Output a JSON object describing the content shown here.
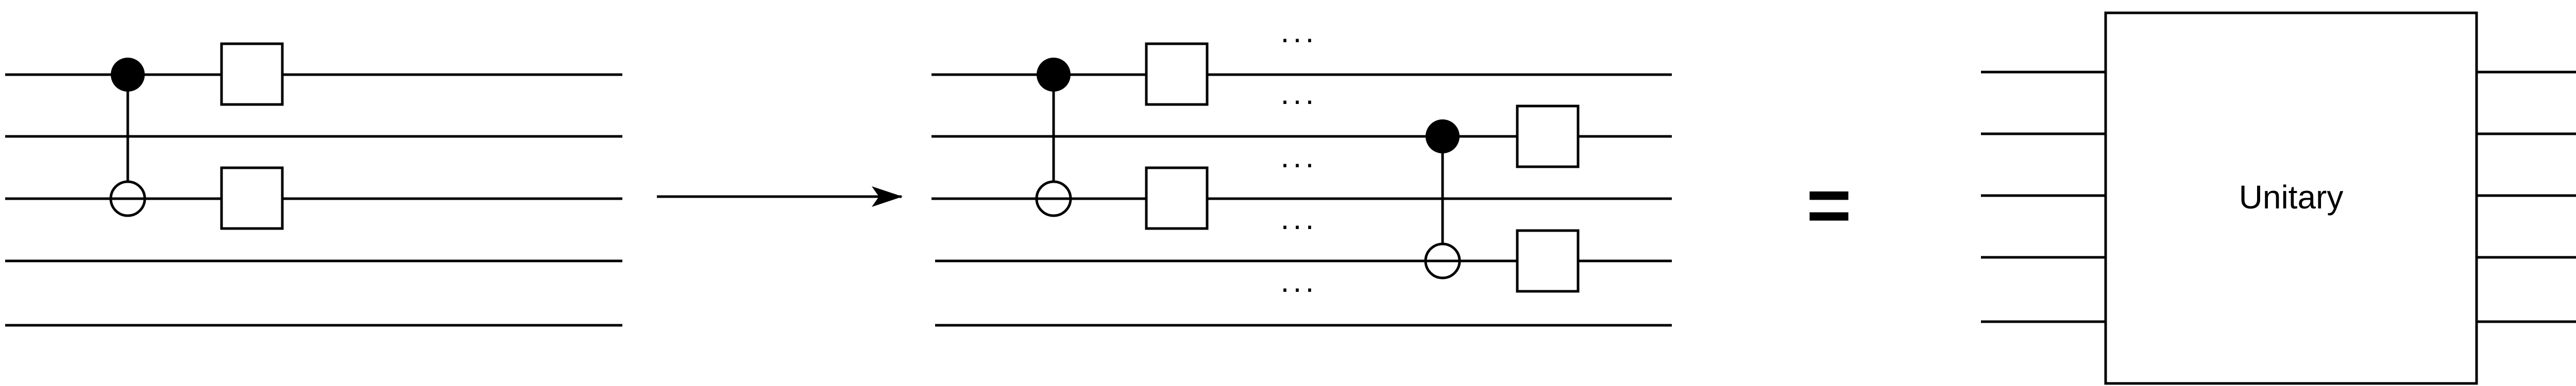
{
  "equals_sign": "=",
  "ellipsis": "···",
  "unitary_label": "Unitary"
}
